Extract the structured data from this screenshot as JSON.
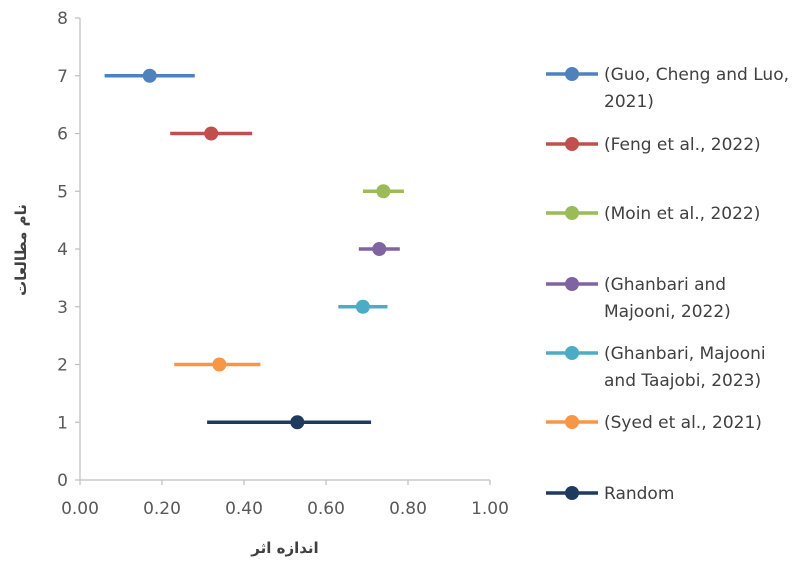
{
  "chart_data": {
    "type": "scatter",
    "title": "",
    "xlabel": "اندازه اثر",
    "ylabel": "نام مطالعات",
    "xlim": [
      0,
      1
    ],
    "ylim": [
      0,
      8
    ],
    "x_ticks": [
      "0.00",
      "0.20",
      "0.40",
      "0.60",
      "0.80",
      "1.00"
    ],
    "y_ticks": [
      "0",
      "1",
      "2",
      "3",
      "4",
      "5",
      "6",
      "7",
      "8"
    ],
    "grid": false,
    "legend_position": "right",
    "series": [
      {
        "name": "(Guo, Cheng and Luo, 2021)",
        "legend_lines": [
          "(Guo, Cheng and Luo,",
          "2021)"
        ],
        "y": 7,
        "x": 0.17,
        "ci": [
          0.06,
          0.28
        ],
        "color": "#4F81BD"
      },
      {
        "name": "(Feng et al., 2022)",
        "legend_lines": [
          "(Feng et al., 2022)"
        ],
        "y": 6,
        "x": 0.32,
        "ci": [
          0.22,
          0.42
        ],
        "color": "#C0504D"
      },
      {
        "name": "(Moin et al., 2022)",
        "legend_lines": [
          "(Moin et al., 2022)"
        ],
        "y": 5,
        "x": 0.74,
        "ci": [
          0.69,
          0.79
        ],
        "color": "#9BBB59"
      },
      {
        "name": "(Ghanbari and Majooni, 2022)",
        "legend_lines": [
          "(Ghanbari and",
          "Majooni, 2022)"
        ],
        "y": 4,
        "x": 0.73,
        "ci": [
          0.68,
          0.78
        ],
        "color": "#8064A2"
      },
      {
        "name": "(Ghanbari, Majooni and Taajobi, 2023)",
        "legend_lines": [
          "(Ghanbari, Majooni",
          "and Taajobi, 2023)"
        ],
        "y": 3,
        "x": 0.69,
        "ci": [
          0.63,
          0.75
        ],
        "color": "#4BACC6"
      },
      {
        "name": "(Syed et al., 2021)",
        "legend_lines": [
          "(Syed et al., 2021)"
        ],
        "y": 2,
        "x": 0.34,
        "ci": [
          0.23,
          0.44
        ],
        "color": "#F79646"
      },
      {
        "name": "Random",
        "legend_lines": [
          "Random"
        ],
        "y": 1,
        "x": 0.53,
        "ci": [
          0.31,
          0.71
        ],
        "color": "#1F3A5F"
      }
    ]
  }
}
